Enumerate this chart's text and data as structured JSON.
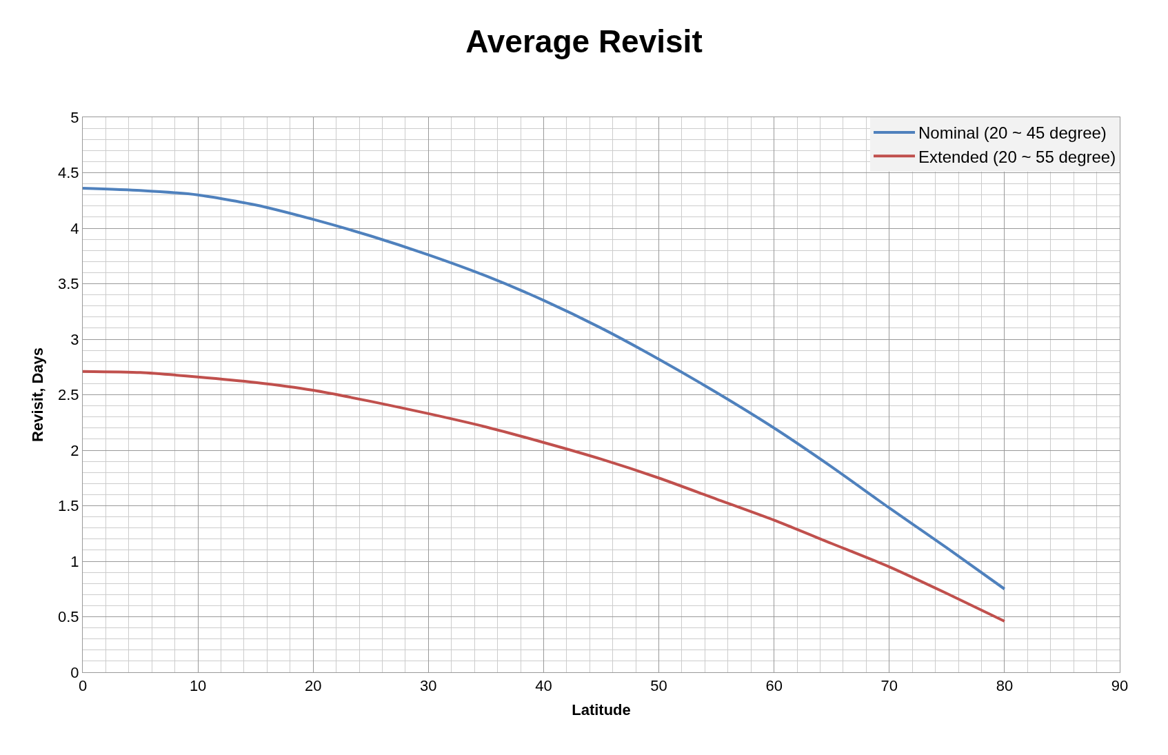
{
  "chart_data": {
    "type": "line",
    "title": "Average Revisit",
    "xlabel": "Latitude",
    "ylabel": "Revisit, Days",
    "x": [
      0,
      5,
      10,
      15,
      20,
      25,
      30,
      35,
      40,
      45,
      50,
      55,
      60,
      65,
      70,
      75,
      80
    ],
    "series": [
      {
        "name": "Nominal (20 ~ 45 degree)",
        "color": "#4f81bd",
        "values": [
          4.36,
          4.34,
          4.3,
          4.21,
          4.08,
          3.93,
          3.76,
          3.57,
          3.35,
          3.1,
          2.82,
          2.52,
          2.2,
          1.85,
          1.48,
          1.12,
          0.75
        ]
      },
      {
        "name": "Extended (20 ~ 55 degree)",
        "color": "#c0504d",
        "values": [
          2.71,
          2.7,
          2.66,
          2.61,
          2.54,
          2.44,
          2.33,
          2.21,
          2.07,
          1.92,
          1.75,
          1.56,
          1.37,
          1.16,
          0.95,
          0.71,
          0.46
        ]
      }
    ],
    "xlim": [
      0,
      90
    ],
    "xticks": [
      0,
      10,
      20,
      30,
      40,
      50,
      60,
      70,
      80,
      90
    ],
    "ylim": [
      0,
      5
    ],
    "yticks": [
      0,
      0.5,
      1,
      1.5,
      2,
      2.5,
      3,
      3.5,
      4,
      4.5,
      5
    ],
    "grid": true,
    "legend": "top right",
    "marker": "none",
    "line_style": "solid"
  }
}
